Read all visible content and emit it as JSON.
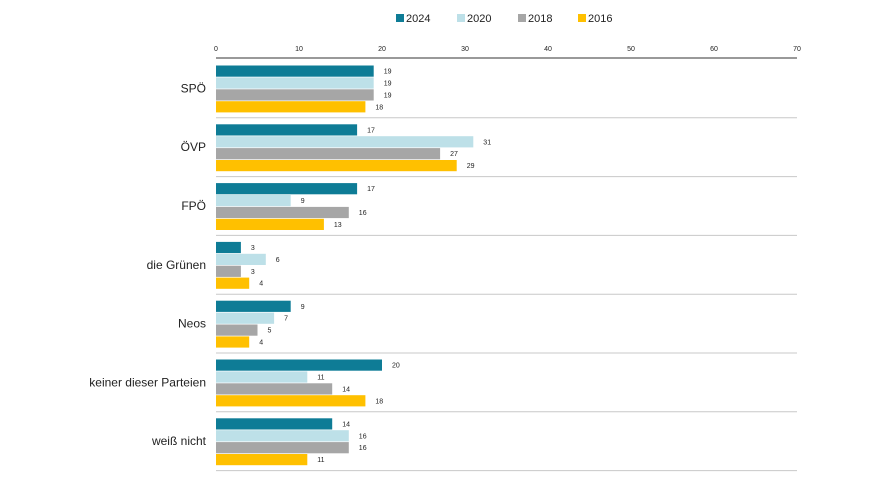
{
  "chart_data": {
    "type": "bar",
    "orientation": "horizontal",
    "categories": [
      "SPÖ",
      "ÖVP",
      "FPÖ",
      "die Grünen",
      "Neos",
      "keiner dieser Parteien",
      "weiß nicht"
    ],
    "series": [
      {
        "name": "2024",
        "color": "#0e7c96",
        "values": [
          19,
          17,
          17,
          3,
          9,
          20,
          14
        ]
      },
      {
        "name": "2020",
        "color": "#bde0e8",
        "values": [
          19,
          31,
          9,
          6,
          7,
          11,
          16
        ]
      },
      {
        "name": "2018",
        "color": "#a6a6a6",
        "values": [
          19,
          27,
          16,
          3,
          5,
          14,
          16
        ]
      },
      {
        "name": "2016",
        "color": "#ffc000",
        "values": [
          18,
          29,
          13,
          4,
          4,
          18,
          11
        ]
      }
    ],
    "xlim": [
      0,
      70
    ],
    "xticks": [
      0,
      10,
      20,
      30,
      40,
      50,
      60,
      70
    ],
    "legend_position": "top",
    "grid": false
  }
}
